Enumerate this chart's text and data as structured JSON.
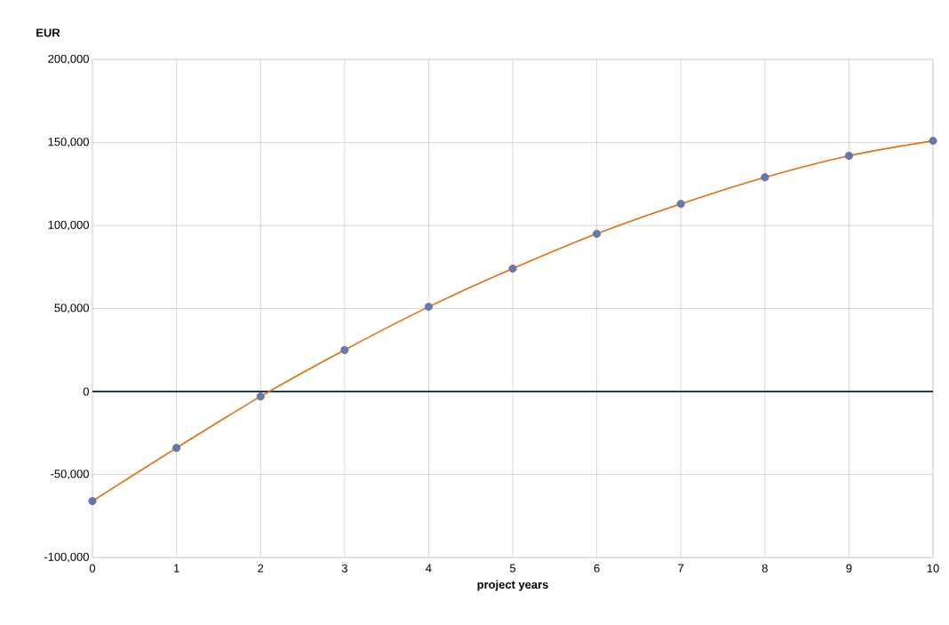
{
  "chart_data": {
    "type": "line",
    "xlabel": "project years",
    "ylabel": "EUR",
    "x": [
      0,
      1,
      2,
      3,
      4,
      5,
      6,
      7,
      8,
      9,
      10
    ],
    "series": [
      {
        "color": "#e46c0a",
        "values": [
          -66000,
          -34000,
          -3000,
          25000,
          51000,
          74000,
          95000,
          113000,
          129000,
          142000,
          151000
        ]
      }
    ],
    "xlim": [
      0,
      10
    ],
    "xticks": [
      0,
      1,
      2,
      3,
      4,
      5,
      6,
      7,
      8,
      9,
      10
    ],
    "ylim": [
      -100000,
      200000
    ],
    "yticks": [
      {
        "value": -100000,
        "label": "-100,000"
      },
      {
        "value": -50000,
        "label": "-50,000"
      },
      {
        "value": 0,
        "label": "0"
      },
      {
        "value": 50000,
        "label": "50,000"
      },
      {
        "value": 100000,
        "label": "100,000"
      },
      {
        "value": 150000,
        "label": "150,000"
      },
      {
        "value": 200000,
        "label": "200,000"
      }
    ],
    "ref_lines": [
      {
        "axis": "y",
        "value": 0,
        "color": "#1f3864"
      }
    ],
    "grid": true,
    "marker": "circle",
    "line_style": "solid"
  }
}
